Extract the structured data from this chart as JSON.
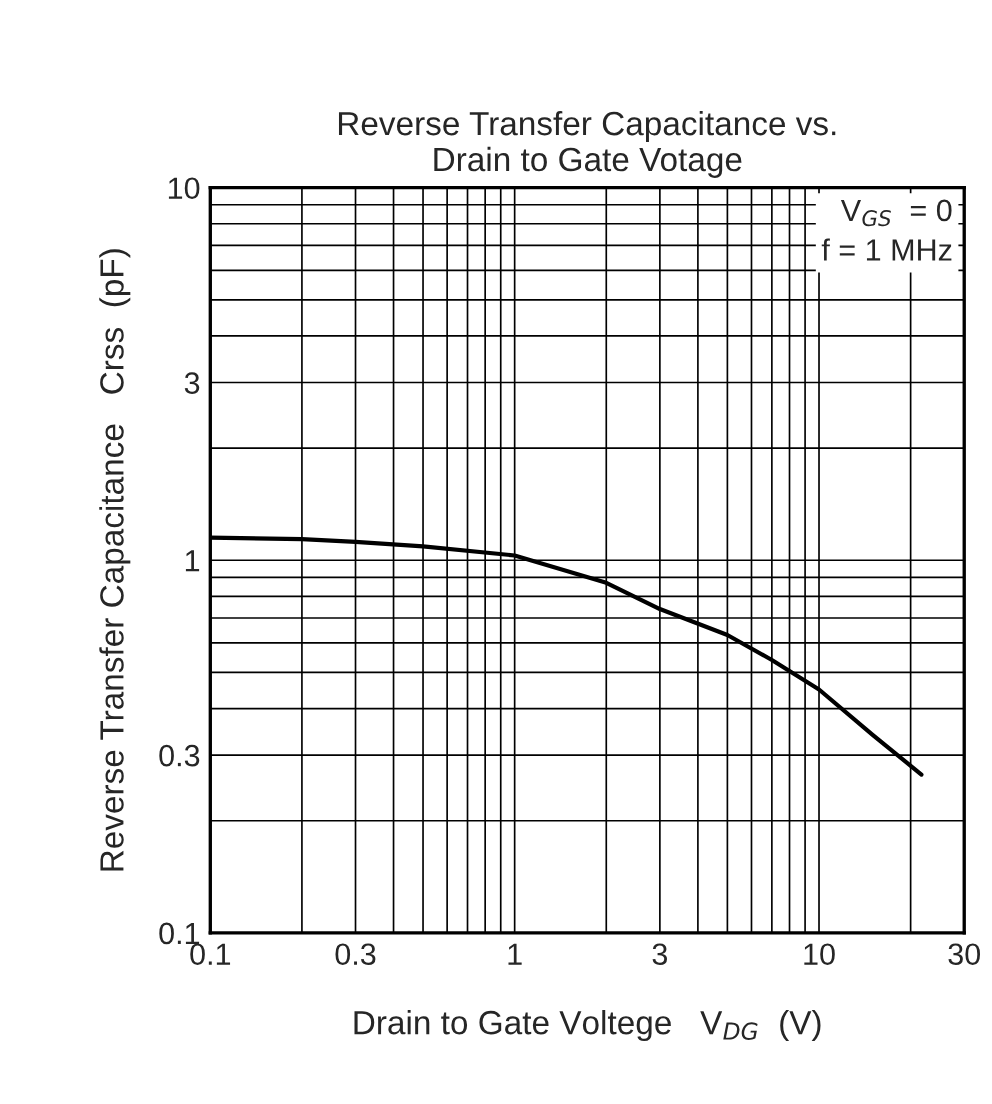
{
  "chart_data": {
    "type": "line",
    "title": "Reverse Transfer Capacitance vs.\nDrain to Gate Votage",
    "xlabel": "Drain to Gate Voltege   V$_{DG}$  (V)",
    "ylabel": "Reverse Transfer Capacitance   Crss  (pF)",
    "x": [
      0.1,
      0.2,
      0.3,
      0.5,
      1,
      2,
      3,
      5,
      7,
      10,
      15,
      21.7
    ],
    "series": [
      {
        "color": "#000000",
        "values": [
          1.15,
          1.14,
          1.12,
          1.09,
          1.03,
          0.87,
          0.74,
          0.63,
          0.54,
          0.45,
          0.34,
          0.266
        ]
      }
    ],
    "log": "xy",
    "xlim": [
      0.1,
      30
    ],
    "ylim": [
      0.1,
      10
    ],
    "xticks": [
      0.1,
      0.3,
      1,
      3,
      10,
      30
    ],
    "yticks": [
      0.1,
      0.3,
      1,
      3,
      10
    ],
    "grid": true,
    "marker": "none",
    "line_style": "solid",
    "annotations": [
      "V$_{GS}$  = 0\nf = 1 MHz"
    ]
  }
}
